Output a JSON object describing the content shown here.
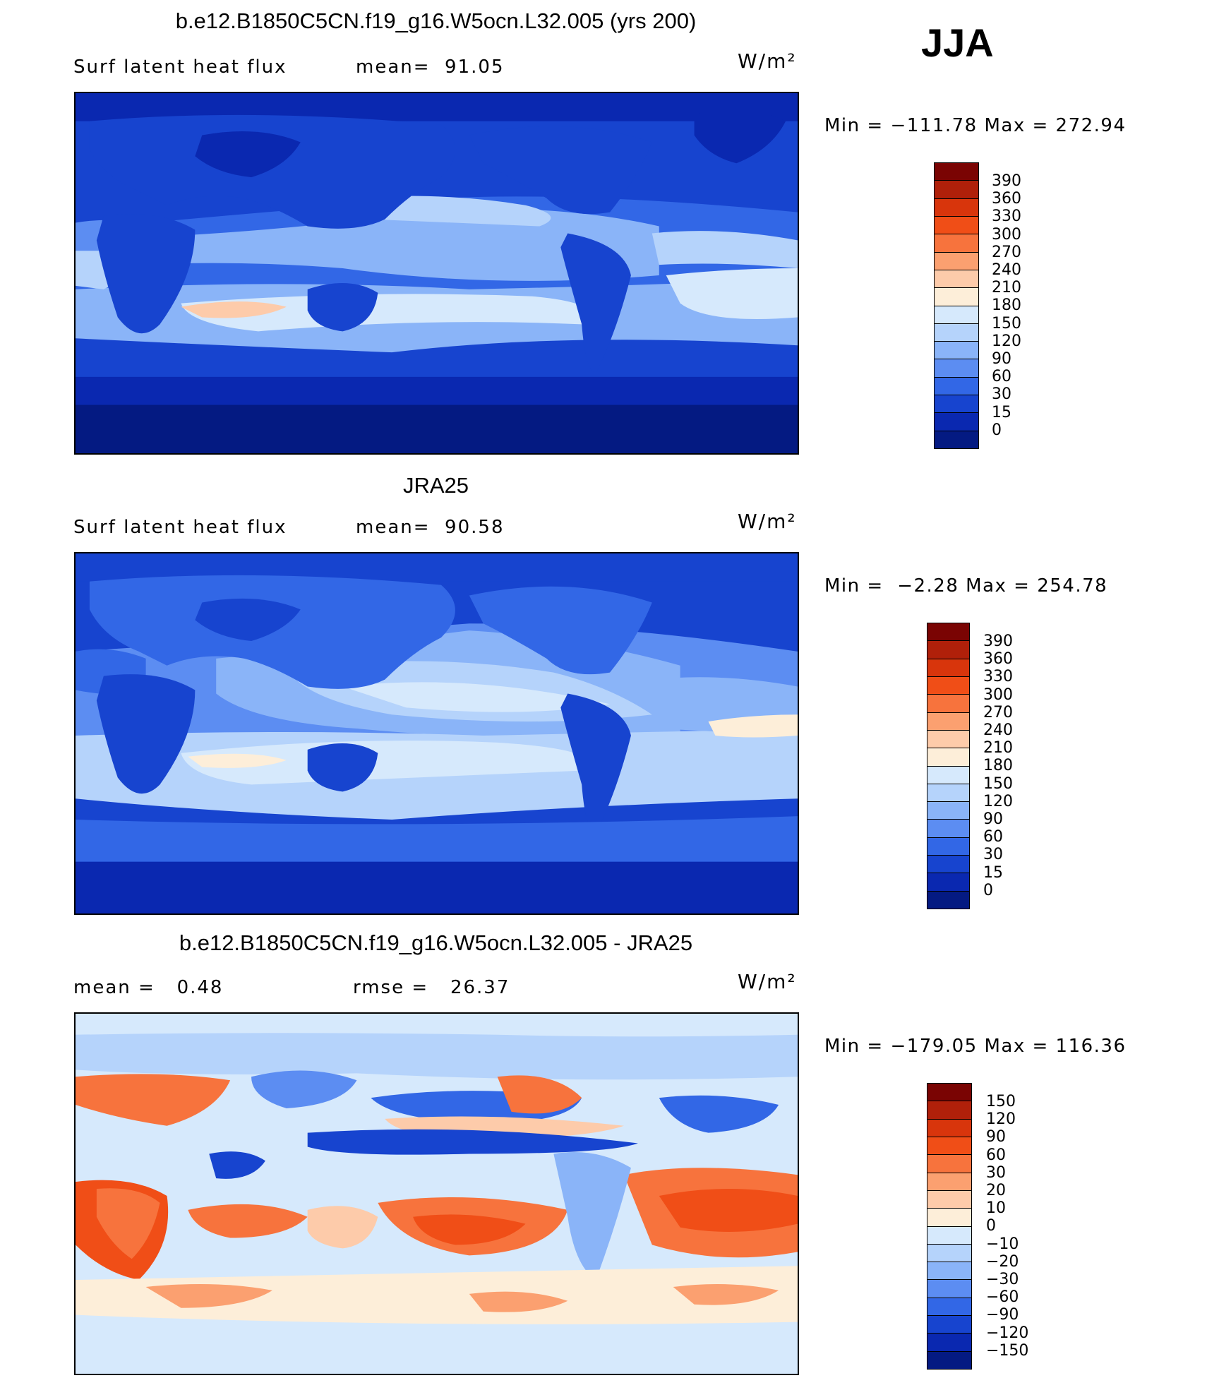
{
  "season": "JJA",
  "units": "W/m²",
  "panels": [
    {
      "title": "b.e12.B1850C5CN.f19_g16.W5ocn.L32.005 (yrs 200)",
      "left_label": "Surf latent heat flux",
      "right_label": "mean=  91.05",
      "min_max": "Min = −111.78 Max = 272.94",
      "colorbar_labels": [
        "390",
        "360",
        "330",
        "300",
        "270",
        "240",
        "210",
        "180",
        "150",
        "120",
        "90",
        "60",
        "30",
        "15",
        "0"
      ],
      "colorbar_colors": [
        "#7a0403",
        "#b0200a",
        "#d8350c",
        "#f04e17",
        "#f7733d",
        "#fba070",
        "#fdcbaa",
        "#fdeed9",
        "#d6e9fc",
        "#b5d3fb",
        "#8ab4f8",
        "#5c8df2",
        "#3267e6",
        "#1744cf",
        "#0a28b0",
        "#041a82"
      ]
    },
    {
      "title": "JRA25",
      "left_label": "Surf latent heat flux",
      "right_label": "mean=  90.58",
      "min_max": "Min =  −2.28 Max = 254.78",
      "colorbar_labels": [
        "390",
        "360",
        "330",
        "300",
        "270",
        "240",
        "210",
        "180",
        "150",
        "120",
        "90",
        "60",
        "30",
        "15",
        "0"
      ],
      "colorbar_colors": [
        "#7a0403",
        "#b0200a",
        "#d8350c",
        "#f04e17",
        "#f7733d",
        "#fba070",
        "#fdcbaa",
        "#fdeed9",
        "#d6e9fc",
        "#b5d3fb",
        "#8ab4f8",
        "#5c8df2",
        "#3267e6",
        "#1744cf",
        "#0a28b0",
        "#041a82"
      ]
    },
    {
      "title": "b.e12.B1850C5CN.f19_g16.W5ocn.L32.005 - JRA25",
      "left_label": "mean =   0.48",
      "right_label": "rmse =   26.37",
      "min_max": "Min = −179.05 Max = 116.36",
      "colorbar_labels": [
        "150",
        "120",
        "90",
        "60",
        "30",
        "20",
        "10",
        "0",
        "−10",
        "−20",
        "−30",
        "−60",
        "−90",
        "−120",
        "−150"
      ],
      "colorbar_colors": [
        "#7a0403",
        "#b0200a",
        "#d8350c",
        "#f04e17",
        "#f7733d",
        "#fba070",
        "#fdcbaa",
        "#fdeed9",
        "#d6e9fc",
        "#b5d3fb",
        "#8ab4f8",
        "#5c8df2",
        "#3267e6",
        "#1744cf",
        "#0a28b0",
        "#041a82"
      ]
    }
  ]
}
